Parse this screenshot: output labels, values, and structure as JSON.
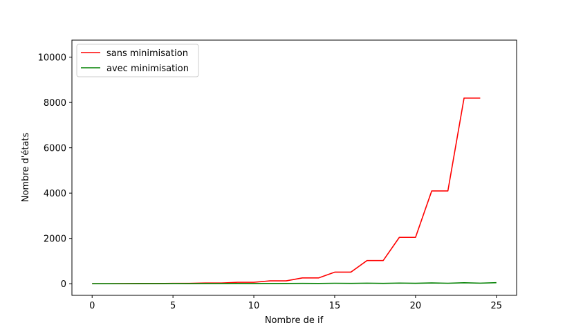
{
  "chart_data": {
    "type": "line",
    "xlabel": "Nombre de if",
    "ylabel": "Nombre d'états",
    "xlim": [
      -1.25,
      26.25
    ],
    "ylim": [
      -512,
      10752
    ],
    "xticks": [
      0,
      5,
      10,
      15,
      20,
      25
    ],
    "yticks": [
      0,
      2000,
      4000,
      6000,
      8000,
      10000
    ],
    "grid": false,
    "legend_position": "top-left",
    "series": [
      {
        "name": "sans minimisation",
        "color": "#ff0000",
        "x": [
          0,
          1,
          2,
          3,
          4,
          5,
          6,
          7,
          8,
          9,
          10,
          11,
          12,
          13,
          14,
          15,
          16,
          17,
          18,
          19,
          20,
          21,
          22,
          23,
          24
        ],
        "y": [
          1,
          2,
          4,
          8,
          8,
          16,
          16,
          32,
          32,
          64,
          64,
          128,
          128,
          256,
          256,
          512,
          512,
          1024,
          1024,
          2048,
          2048,
          4096,
          4096,
          8192,
          8192
        ]
      },
      {
        "name": "avec minimisation",
        "color": "#008000",
        "x": [
          0,
          1,
          2,
          3,
          4,
          5,
          6,
          7,
          8,
          9,
          10,
          11,
          12,
          13,
          14,
          15,
          16,
          17,
          18,
          19,
          20,
          21,
          22,
          23,
          24,
          25
        ],
        "y": [
          1,
          2,
          3,
          5,
          4,
          8,
          6,
          10,
          8,
          12,
          10,
          14,
          12,
          18,
          14,
          22,
          16,
          26,
          18,
          30,
          20,
          36,
          22,
          42,
          26,
          46
        ]
      }
    ]
  }
}
